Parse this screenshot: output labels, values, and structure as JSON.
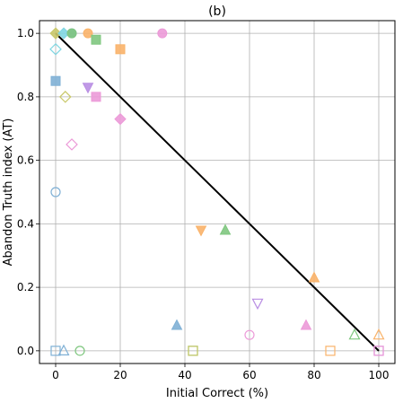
{
  "chart_data": {
    "type": "scatter",
    "title": "(b)",
    "xlabel": "Initial Correct (%)",
    "ylabel": "Abandon Truth index (AT)",
    "xlim": [
      -5,
      105
    ],
    "ylim": [
      -0.04,
      1.04
    ],
    "xticks": [
      0,
      20,
      40,
      60,
      80,
      100
    ],
    "yticks": [
      0.0,
      0.2,
      0.4,
      0.6,
      0.8,
      1.0
    ],
    "xtick_labels": [
      "0",
      "20",
      "40",
      "60",
      "80",
      "100"
    ],
    "ytick_labels": [
      "0.0",
      "0.2",
      "0.4",
      "0.6",
      "0.8",
      "1.0"
    ],
    "grid": true,
    "colors": {
      "blue": "#7fb0d5",
      "orange": "#f9b36a",
      "green": "#7fc77f",
      "purple": "#b98ee3",
      "pink": "#ec9ad8",
      "olive": "#c9c86a",
      "cyan": "#7fd6e2",
      "line": "#000000"
    },
    "trend_line": {
      "x": [
        0,
        100
      ],
      "y": [
        1.0,
        0.0
      ]
    },
    "points": [
      {
        "x": 0,
        "y": 1.0,
        "marker": "diamond",
        "color": "olive",
        "filled": true
      },
      {
        "x": 2.5,
        "y": 1.0,
        "marker": "diamond",
        "color": "cyan",
        "filled": true
      },
      {
        "x": 5,
        "y": 1.0,
        "marker": "circle",
        "color": "blue",
        "filled": true
      },
      {
        "x": 5,
        "y": 1.0,
        "marker": "circle",
        "color": "green",
        "filled": true
      },
      {
        "x": 10,
        "y": 1.0,
        "marker": "circle",
        "color": "orange",
        "filled": true
      },
      {
        "x": 12.5,
        "y": 0.98,
        "marker": "square",
        "color": "green",
        "filled": true
      },
      {
        "x": 20,
        "y": 0.95,
        "marker": "square",
        "color": "orange",
        "filled": true
      },
      {
        "x": 33,
        "y": 1.0,
        "marker": "circle",
        "color": "pink",
        "filled": true
      },
      {
        "x": 0,
        "y": 0.95,
        "marker": "diamond",
        "color": "cyan",
        "filled": false
      },
      {
        "x": 0,
        "y": 0.85,
        "marker": "square",
        "color": "blue",
        "filled": true
      },
      {
        "x": 10,
        "y": 0.83,
        "marker": "triangle-down",
        "color": "purple",
        "filled": true
      },
      {
        "x": 12.5,
        "y": 0.8,
        "marker": "square",
        "color": "pink",
        "filled": true
      },
      {
        "x": 3,
        "y": 0.8,
        "marker": "diamond",
        "color": "olive",
        "filled": false
      },
      {
        "x": 20,
        "y": 0.73,
        "marker": "diamond",
        "color": "pink",
        "filled": true
      },
      {
        "x": 5,
        "y": 0.65,
        "marker": "diamond",
        "color": "pink",
        "filled": false
      },
      {
        "x": 0,
        "y": 0.5,
        "marker": "circle",
        "color": "blue",
        "filled": false
      },
      {
        "x": 45,
        "y": 0.38,
        "marker": "triangle-down",
        "color": "orange",
        "filled": true
      },
      {
        "x": 52.5,
        "y": 0.38,
        "marker": "triangle",
        "color": "green",
        "filled": true
      },
      {
        "x": 80,
        "y": 0.23,
        "marker": "triangle",
        "color": "orange",
        "filled": true
      },
      {
        "x": 62.5,
        "y": 0.15,
        "marker": "triangle-down",
        "color": "purple",
        "filled": false
      },
      {
        "x": 37.5,
        "y": 0.08,
        "marker": "triangle",
        "color": "blue",
        "filled": true
      },
      {
        "x": 77.5,
        "y": 0.08,
        "marker": "triangle",
        "color": "pink",
        "filled": true
      },
      {
        "x": 60,
        "y": 0.05,
        "marker": "circle",
        "color": "pink",
        "filled": false
      },
      {
        "x": 92.5,
        "y": 0.05,
        "marker": "triangle",
        "color": "green",
        "filled": false
      },
      {
        "x": 100,
        "y": 0.05,
        "marker": "triangle",
        "color": "orange",
        "filled": false
      },
      {
        "x": 0,
        "y": 0.0,
        "marker": "square",
        "color": "blue",
        "filled": false
      },
      {
        "x": 2.5,
        "y": 0.0,
        "marker": "triangle",
        "color": "blue",
        "filled": false
      },
      {
        "x": 7.5,
        "y": 0.0,
        "marker": "circle",
        "color": "green",
        "filled": false
      },
      {
        "x": 42.5,
        "y": 0.0,
        "marker": "square",
        "color": "green",
        "filled": false
      },
      {
        "x": 42.5,
        "y": 0.0,
        "marker": "square",
        "color": "olive",
        "filled": false
      },
      {
        "x": 85,
        "y": 0.0,
        "marker": "square",
        "color": "orange",
        "filled": false
      },
      {
        "x": 100,
        "y": 0.0,
        "marker": "square",
        "color": "purple",
        "filled": false
      },
      {
        "x": 100,
        "y": 0.0,
        "marker": "square",
        "color": "pink",
        "filled": false
      }
    ]
  }
}
